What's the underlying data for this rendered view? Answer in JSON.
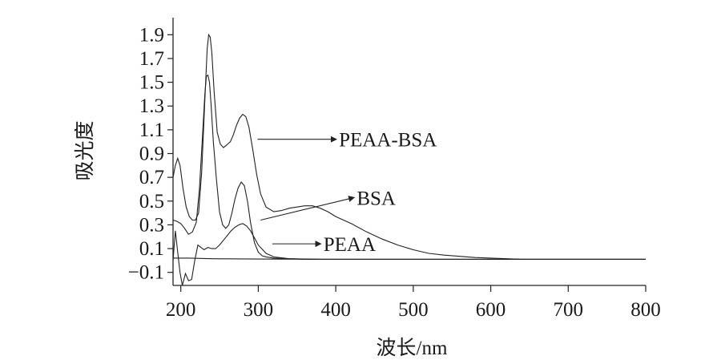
{
  "chart_data": {
    "type": "line",
    "title": "",
    "xlabel": "波长/nm",
    "ylabel": "吸光度",
    "xlim": [
      190,
      800
    ],
    "ylim": [
      -0.21,
      1.99
    ],
    "x_ticks": [
      200,
      300,
      400,
      500,
      600,
      700,
      800
    ],
    "x_tick_labels": [
      "200",
      "300",
      "400",
      "500",
      "600",
      "700",
      "800"
    ],
    "y_ticks": [
      1.9,
      1.7,
      1.5,
      1.3,
      1.1,
      0.9,
      0.7,
      0.5,
      0.3,
      0.1,
      -0.1
    ],
    "y_tick_labels": [
      "1.9",
      "1.7",
      "1.5",
      "1.3",
      "1.1",
      "0.9",
      "0.7",
      "0.5",
      "0.3",
      "0.1",
      "−0.1"
    ],
    "grid": false,
    "legend": "none",
    "series": [
      {
        "x": [
          190,
          193,
          196,
          199,
          203,
          207,
          211,
          215,
          219,
          223,
          227,
          231,
          234,
          236,
          238,
          240,
          243,
          247,
          251,
          255,
          259,
          264,
          268,
          272,
          276,
          280,
          284,
          288,
          293,
          298,
          303,
          310,
          320,
          330,
          340,
          350,
          360,
          370,
          380,
          390,
          400,
          420,
          440,
          460,
          480,
          500,
          520,
          540,
          560,
          580,
          600,
          620,
          640,
          660,
          700,
          750,
          800
        ],
        "y": [
          0.7,
          0.8,
          0.86,
          0.8,
          0.6,
          0.45,
          0.37,
          0.34,
          0.34,
          0.4,
          0.75,
          1.35,
          1.78,
          1.9,
          1.88,
          1.75,
          1.42,
          1.08,
          0.98,
          0.95,
          0.97,
          1.0,
          1.06,
          1.14,
          1.2,
          1.23,
          1.21,
          1.12,
          0.93,
          0.72,
          0.56,
          0.45,
          0.41,
          0.42,
          0.44,
          0.45,
          0.46,
          0.46,
          0.44,
          0.41,
          0.37,
          0.31,
          0.24,
          0.18,
          0.13,
          0.09,
          0.06,
          0.045,
          0.035,
          0.025,
          0.02,
          0.015,
          0.01,
          0.01,
          0.01,
          0.01,
          0.01
        ]
      },
      {
        "x": [
          190,
          195,
          200,
          205,
          210,
          215,
          220,
          224,
          228,
          231,
          233,
          235,
          237,
          239,
          242,
          246,
          250,
          254,
          258,
          262,
          266,
          270,
          274,
          278,
          282,
          286,
          290,
          295,
          300,
          305,
          310,
          320,
          340,
          360,
          380,
          400,
          440,
          480,
          520,
          560,
          600,
          650,
          700,
          750,
          800
        ],
        "y": [
          0.34,
          0.33,
          0.31,
          0.27,
          0.22,
          0.24,
          0.32,
          0.6,
          1.05,
          1.4,
          1.55,
          1.56,
          1.5,
          1.32,
          1.0,
          0.68,
          0.41,
          0.3,
          0.27,
          0.3,
          0.4,
          0.52,
          0.61,
          0.66,
          0.63,
          0.5,
          0.32,
          0.15,
          0.07,
          0.04,
          0.03,
          0.02,
          0.015,
          0.012,
          0.01,
          0.01,
          0.01,
          0.01,
          0.01,
          0.01,
          0.01,
          0.01,
          0.01,
          0.01,
          0.01
        ]
      },
      {
        "x": [
          190,
          193,
          196,
          199,
          202,
          206,
          210,
          214,
          218,
          222,
          226,
          230,
          235,
          240,
          245,
          250,
          255,
          260,
          265,
          270,
          275,
          280,
          285,
          290,
          295,
          300,
          310,
          320,
          340,
          360,
          380,
          400,
          450,
          500,
          550,
          600,
          650,
          700,
          750,
          800
        ],
        "y": [
          0.0,
          0.25,
          0.07,
          -0.1,
          -0.21,
          -0.11,
          -0.17,
          -0.16,
          0.0,
          0.13,
          0.11,
          0.09,
          0.11,
          0.1,
          0.1,
          0.13,
          0.17,
          0.21,
          0.25,
          0.28,
          0.3,
          0.31,
          0.29,
          0.25,
          0.19,
          0.13,
          0.06,
          0.03,
          0.015,
          0.01,
          0.01,
          0.01,
          0.01,
          0.01,
          0.01,
          0.01,
          0.01,
          0.01,
          0.01,
          0.01
        ]
      },
      {
        "x": [
          190,
          210,
          240,
          300,
          400,
          500,
          600,
          700,
          800
        ],
        "y": [
          0.02,
          0.02,
          0.015,
          0.012,
          0.01,
          0.01,
          0.01,
          0.01,
          0.01
        ]
      }
    ],
    "annotations": [
      {
        "text": "PEAA-BSA",
        "from": [
          299,
          1.02
        ],
        "to": [
          401,
          1.02
        ]
      },
      {
        "text": "BSA",
        "from": [
          303,
          0.34
        ],
        "to": [
          424,
          0.53
        ]
      },
      {
        "text": "PEAA",
        "from": [
          318,
          0.14
        ],
        "to": [
          381,
          0.14
        ]
      }
    ]
  }
}
